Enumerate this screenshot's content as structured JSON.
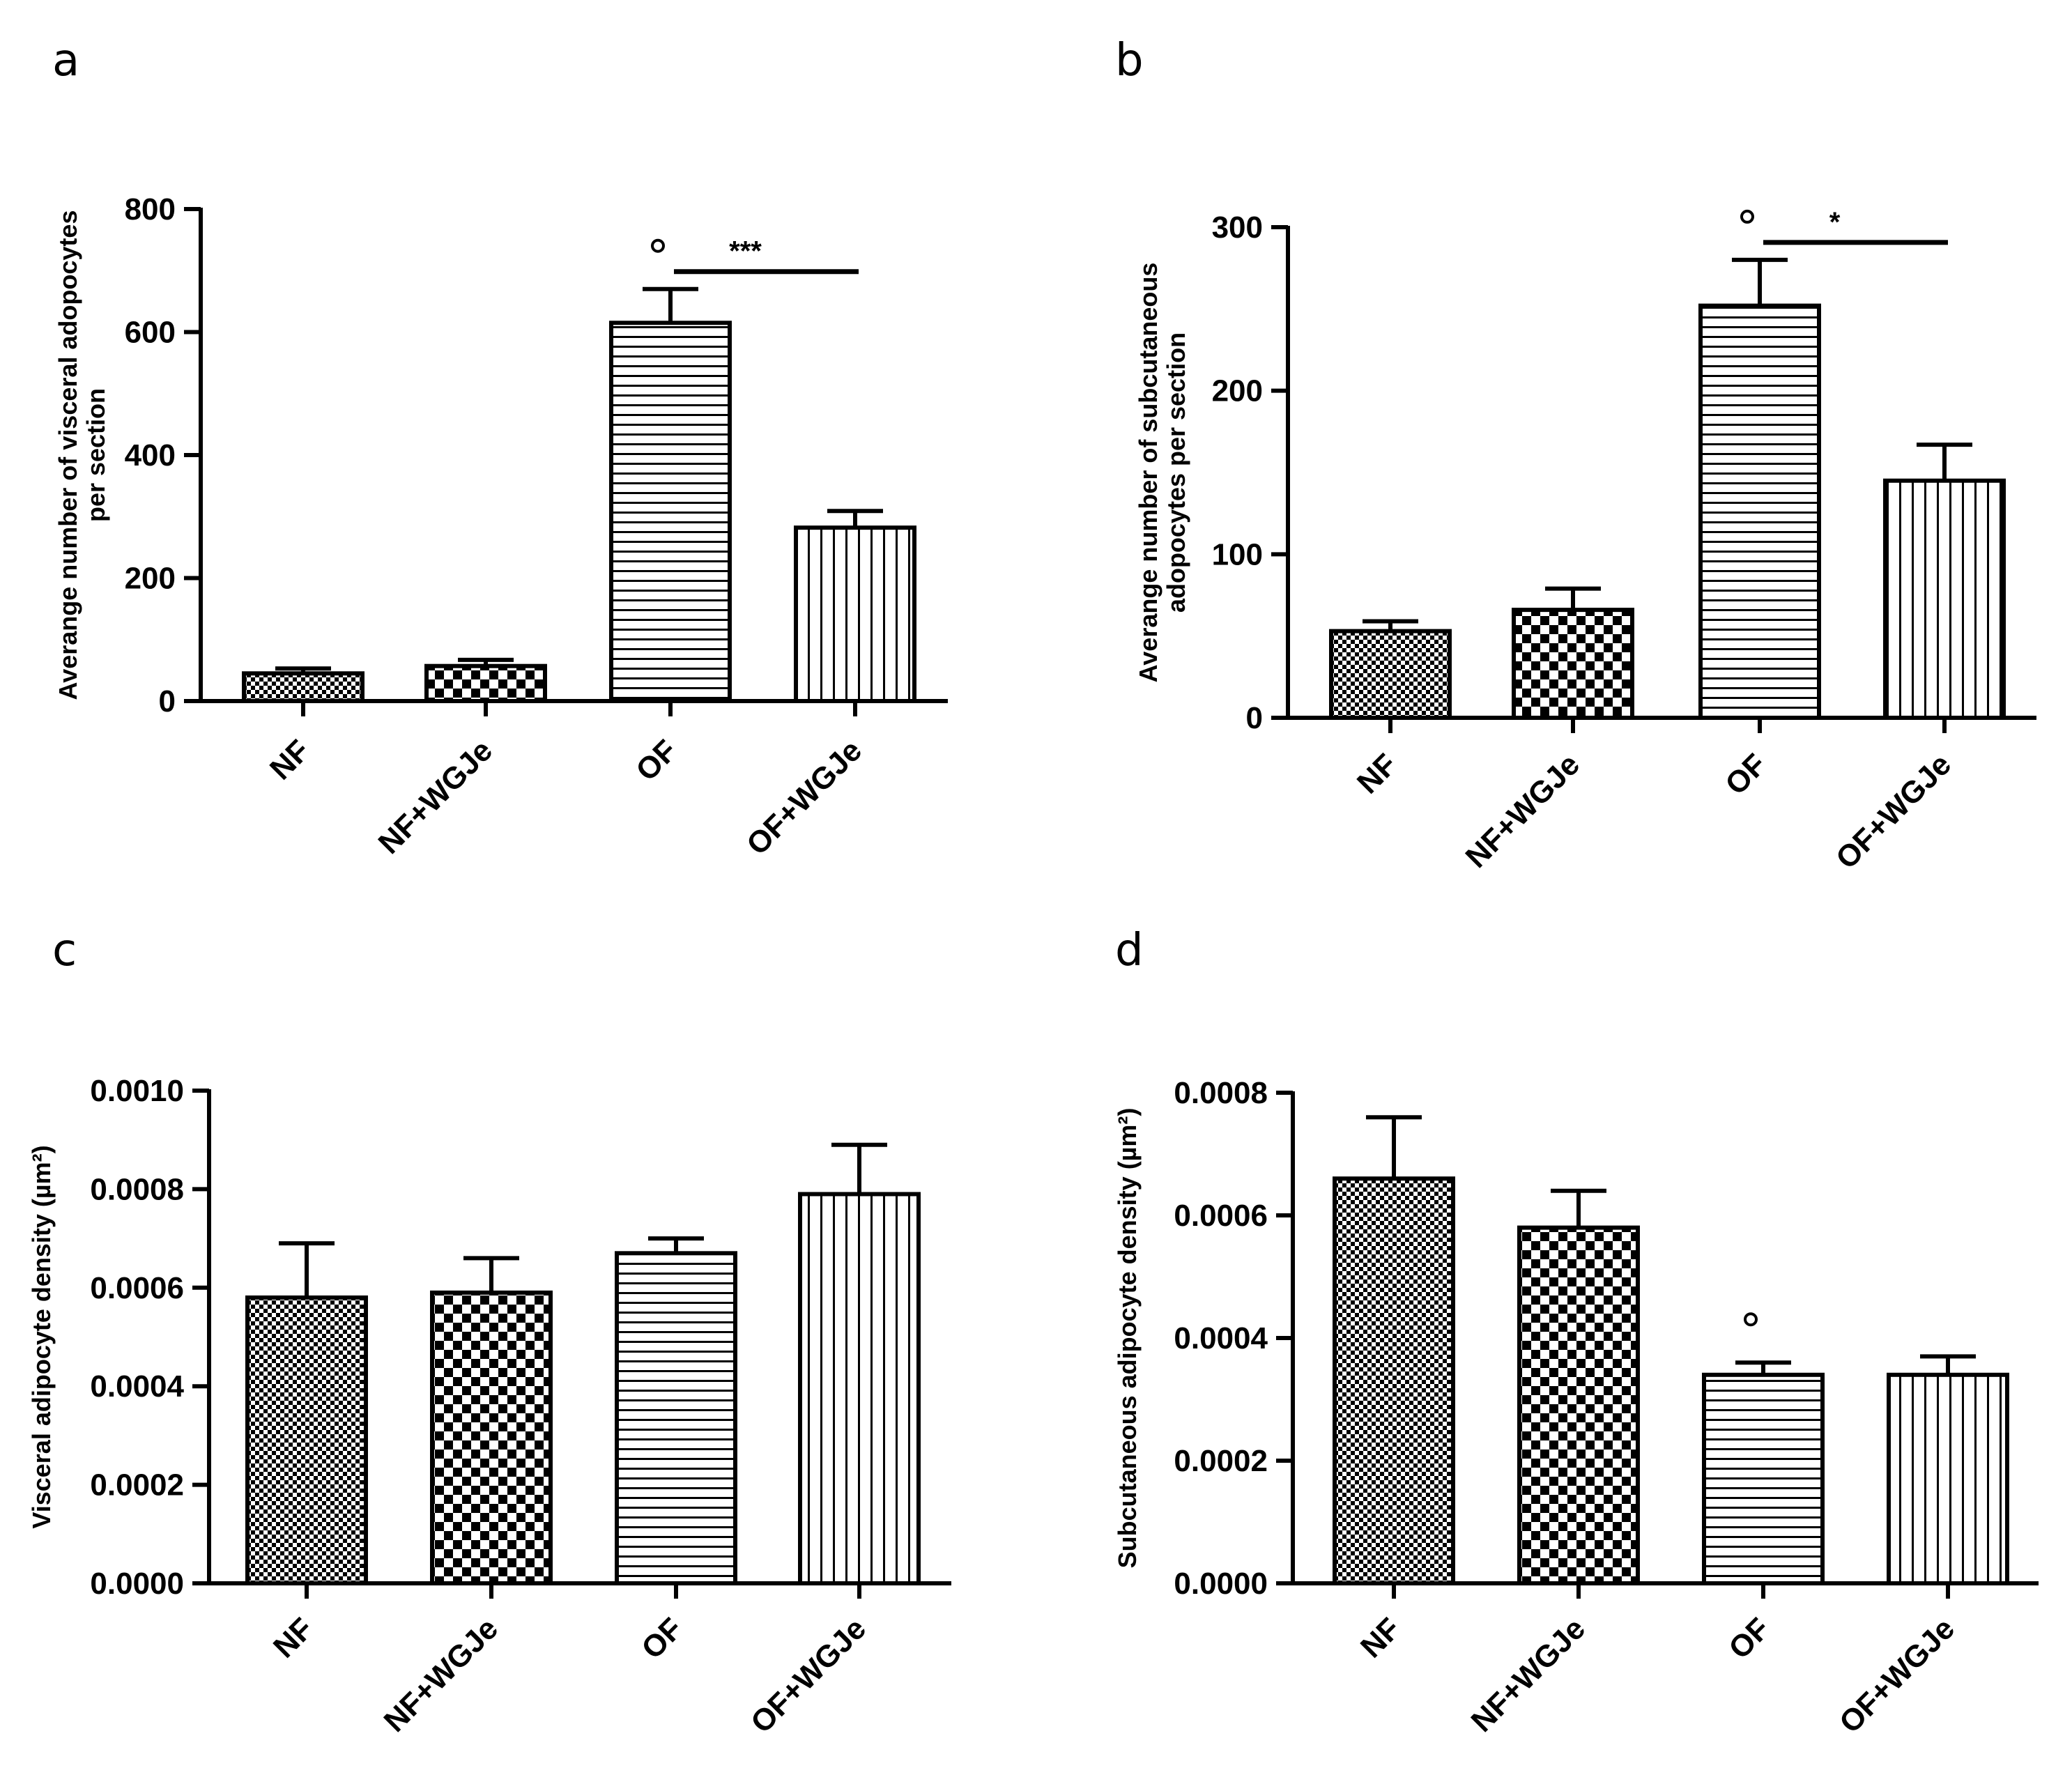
{
  "chart_data": [
    {
      "panel": "a",
      "type": "bar",
      "categories": [
        "NF",
        "NF+WGJe",
        "OF",
        "OF+WGJe"
      ],
      "values": [
        45,
        57,
        615,
        282
      ],
      "errors": [
        8,
        10,
        55,
        27
      ],
      "ylim": [
        0,
        800
      ],
      "yticks": [
        0,
        200,
        400,
        600,
        800
      ],
      "ytick_labels": [
        "0",
        "200",
        "400",
        "600",
        "800"
      ],
      "ylabel_lines": [
        "Averange number of visceral adopocytes",
        "per section"
      ],
      "annotations": {
        "circle_above": "OF",
        "bracket_from": "OF",
        "bracket_to": "OF+WGJe",
        "bracket_text": "***"
      }
    },
    {
      "panel": "b",
      "type": "bar",
      "categories": [
        "NF",
        "NF+WGJe",
        "OF",
        "OF+WGJe"
      ],
      "values": [
        53,
        66,
        252,
        145
      ],
      "errors": [
        6,
        13,
        28,
        22
      ],
      "ylim": [
        0,
        300
      ],
      "yticks": [
        0,
        100,
        200,
        300
      ],
      "ytick_labels": [
        "0",
        "100",
        "200",
        "300"
      ],
      "ylabel_lines": [
        "Averange number of subcutaneous",
        "adopocytes per section"
      ],
      "annotations": {
        "circle_above": "OF",
        "bracket_from": "OF",
        "bracket_to": "OF+WGJe",
        "bracket_text": "*"
      }
    },
    {
      "panel": "c",
      "type": "bar",
      "categories": [
        "NF",
        "NF+WGJe",
        "OF",
        "OF+WGJe"
      ],
      "values": [
        0.00058,
        0.00059,
        0.00067,
        0.00079
      ],
      "errors": [
        0.00011,
        7e-05,
        3e-05,
        0.0001
      ],
      "ylim": [
        0,
        0.001
      ],
      "yticks": [
        0,
        0.0002,
        0.0004,
        0.0006,
        0.0008,
        0.001
      ],
      "ytick_labels": [
        "0.0000",
        "0.0002",
        "0.0004",
        "0.0006",
        "0.0008",
        "0.0010"
      ],
      "ylabel_lines": [
        "Visceral adipocyte density (µm²)"
      ],
      "annotations": {}
    },
    {
      "panel": "d",
      "type": "bar",
      "categories": [
        "NF",
        "NF+WGJe",
        "OF",
        "OF+WGJe"
      ],
      "values": [
        0.00066,
        0.00058,
        0.00034,
        0.00034
      ],
      "errors": [
        0.0001,
        6e-05,
        2e-05,
        3e-05
      ],
      "ylim": [
        0,
        0.0008
      ],
      "yticks": [
        0,
        0.0002,
        0.0004,
        0.0006,
        0.0008
      ],
      "ytick_labels": [
        "0.0000",
        "0.0002",
        "0.0004",
        "0.0006",
        "0.0008"
      ],
      "ylabel_lines": [
        "Subcutaneous adipocyte density (µm²)"
      ],
      "annotations": {
        "circle_above": "OF"
      }
    }
  ]
}
